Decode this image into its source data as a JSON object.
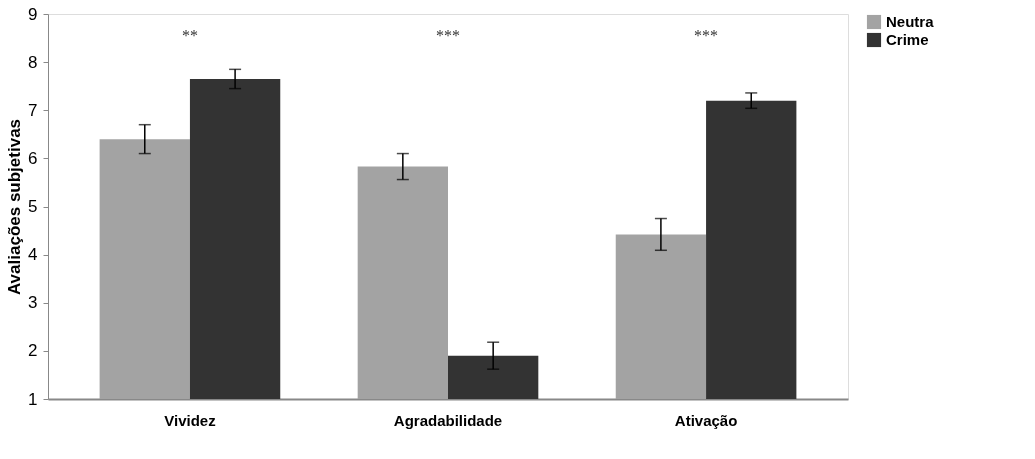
{
  "chart_data": {
    "type": "bar",
    "ylabel": "Avaliações  subjetivas",
    "categories": [
      "Vividez",
      "Agradabilidade",
      "Ativação"
    ],
    "series": [
      {
        "name": "Neutra",
        "color": "#a3a3a3",
        "values": [
          6.4,
          5.83,
          4.42
        ],
        "errors": [
          0.3,
          0.27,
          0.33
        ]
      },
      {
        "name": "Crime",
        "color": "#333333",
        "values": [
          7.65,
          1.9,
          7.2
        ],
        "errors": [
          0.2,
          0.28,
          0.16
        ]
      }
    ],
    "ylim": [
      1,
      9
    ],
    "yticks": [
      1,
      2,
      3,
      4,
      5,
      6,
      7,
      8,
      9
    ],
    "grid": false,
    "legend": "right",
    "annotations": [
      "**",
      "***",
      "***"
    ]
  }
}
